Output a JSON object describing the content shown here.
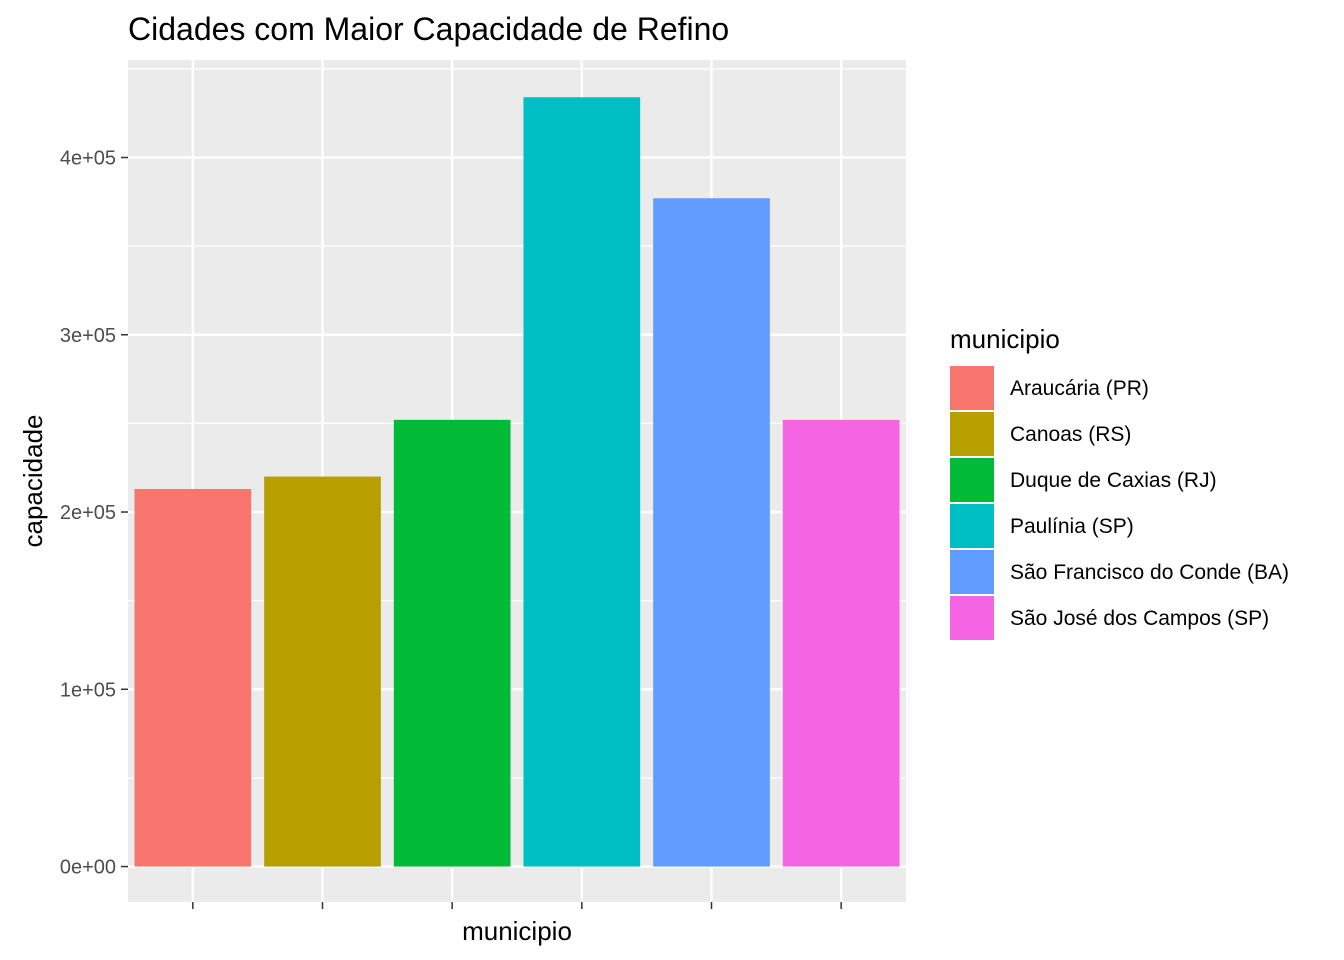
{
  "chart_data": {
    "type": "bar",
    "title": "Cidades com Maior Capacidade de Refino",
    "xlabel": "municipio",
    "ylabel": "capacidade",
    "categories": [
      "Araucária (PR)",
      "Canoas (RS)",
      "Duque de Caxias (RJ)",
      "Paulínia (SP)",
      "São Francisco do Conde (BA)",
      "São José dos Campos (SP)"
    ],
    "values": [
      213000,
      220000,
      252000,
      434000,
      377000,
      252000
    ],
    "colors": [
      "#F8766D",
      "#B79F00",
      "#00BA38",
      "#00BFC4",
      "#619CFF",
      "#F564E3"
    ],
    "ylim": [
      -20000,
      455000
    ],
    "yticks": [
      0,
      100000,
      200000,
      300000,
      400000
    ],
    "ytick_labels": [
      "0e+00",
      "1e+05",
      "2e+05",
      "3e+05",
      "4e+05"
    ],
    "x_tick_labels_shown": false,
    "grid": true,
    "panel_background": "#EBEBEB",
    "grid_color": "#FFFFFF",
    "legend": {
      "title": "municipio",
      "position": "right"
    }
  }
}
